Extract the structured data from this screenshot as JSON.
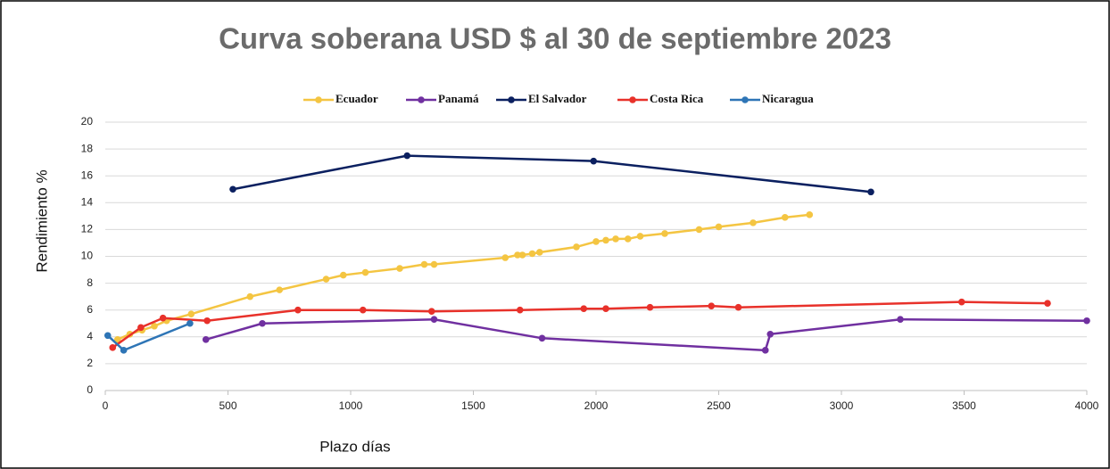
{
  "chart_data": {
    "type": "line",
    "title": "Curva soberana USD $ al 30 de septiembre 2023",
    "x_label": "Plazo días",
    "y_label": "Rendimiento %",
    "xlim": [
      0,
      4000
    ],
    "xticks": [
      0,
      500,
      1000,
      1500,
      2000,
      2500,
      3000,
      3500,
      4000
    ],
    "ylim": [
      0,
      20
    ],
    "yticks": [
      0,
      2,
      4,
      6,
      8,
      10,
      12,
      14,
      16,
      18,
      20
    ],
    "grid": true,
    "legend": "top",
    "series": [
      {
        "name": "Ecuador",
        "color": "#f4c542",
        "x": [
          50,
          100,
          150,
          200,
          250,
          350,
          590,
          710,
          900,
          970,
          1060,
          1200,
          1300,
          1340,
          1630,
          1680,
          1700,
          1740,
          1770,
          1920,
          2000,
          2040,
          2080,
          2130,
          2180,
          2280,
          2420,
          2500,
          2640,
          2770,
          2870
        ],
        "values": [
          3.8,
          4.2,
          4.5,
          4.8,
          5.2,
          5.7,
          7.0,
          7.5,
          8.3,
          8.6,
          8.8,
          9.1,
          9.4,
          9.4,
          9.9,
          10.1,
          10.1,
          10.2,
          10.3,
          10.7,
          11.1,
          11.2,
          11.3,
          11.3,
          11.5,
          11.7,
          12.0,
          12.2,
          12.5,
          12.9,
          13.1
        ]
      },
      {
        "name": "Panamá",
        "color": "#7030a0",
        "x": [
          410,
          640,
          1340,
          1780,
          2690,
          2710,
          3240,
          4000
        ],
        "values": [
          3.8,
          5.0,
          5.3,
          3.9,
          3.0,
          4.2,
          5.3,
          5.2
        ]
      },
      {
        "name": "El Salvador",
        "color": "#0b2060",
        "x": [
          520,
          1230,
          1990,
          3120
        ],
        "values": [
          15.0,
          17.5,
          17.1,
          14.8
        ]
      },
      {
        "name": "Costa Rica",
        "color": "#e8312a",
        "x": [
          30,
          145,
          235,
          415,
          785,
          1050,
          1330,
          1690,
          1950,
          2040,
          2220,
          2470,
          2580,
          3490,
          3840
        ],
        "values": [
          3.2,
          4.7,
          5.4,
          5.2,
          6.0,
          6.0,
          5.9,
          6.0,
          6.1,
          6.1,
          6.2,
          6.3,
          6.2,
          6.6,
          6.5
        ]
      },
      {
        "name": "Nicaragua",
        "color": "#2e75b6",
        "x": [
          10,
          75,
          345
        ],
        "values": [
          4.1,
          3.0,
          5.0
        ]
      }
    ]
  }
}
